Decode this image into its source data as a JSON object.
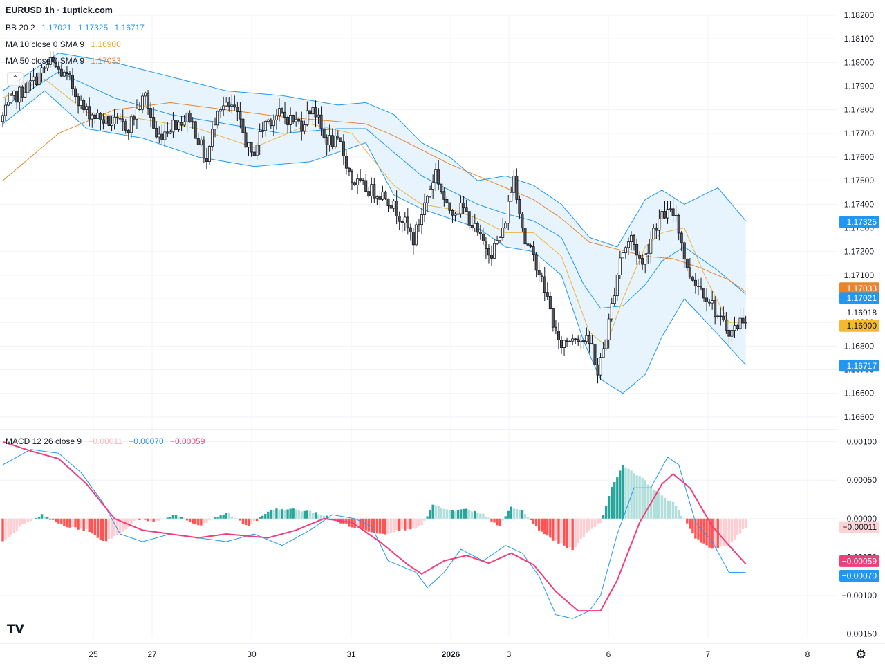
{
  "header": {
    "title": "EURUSD 1h · 1uptick.com",
    "bb": {
      "label": "BB 20 2",
      "basis": "1.17021",
      "upper": "1.17325",
      "lower": "1.16717"
    },
    "ma10": {
      "label": "MA 10 close 0 SMA 9",
      "value": "1.16900"
    },
    "ma50": {
      "label": "MA 50 close 0 SMA 9",
      "value": "1.17033"
    },
    "macd": {
      "label": "MACD 12 26 close 9",
      "hist": "−0.00011",
      "macd": "−0.00070",
      "signal": "−0.00059"
    }
  },
  "colors": {
    "up_candle": "#ffffff",
    "down_candle": "#555555",
    "wick": "#131722",
    "bb_line": "#2196f3",
    "bb_fill": "#e3f2fd",
    "ma10": "#f0b33c",
    "ma50": "#e8842c",
    "macd_line": "#2196f3",
    "signal_line": "#f23d7b",
    "hist_pos_strong": "#26a69a",
    "hist_pos_weak": "#b2dfdb",
    "hist_neg_strong": "#ff5252",
    "hist_neg_weak": "#ffcdd2",
    "badge_upper": "#2196f3",
    "badge_basis": "#2196f3",
    "badge_lower": "#2196f3",
    "badge_ma50": "#e8842c",
    "badge_ma10": "#f5b82e",
    "badge_hist": "#fcd4d6",
    "badge_signal": "#f23d7b",
    "badge_macd": "#2196f3"
  },
  "chart_data": [
    {
      "type": "candlestick",
      "symbol": "EURUSD",
      "timeframe": "1h",
      "ylim": [
        1.1645,
        1.182
      ],
      "y_ticks": [
        "1.18200",
        "1.18100",
        "1.18000",
        "1.17900",
        "1.17800",
        "1.17700",
        "1.17600",
        "1.17500",
        "1.17400",
        "1.17300",
        "1.17200",
        "1.17100",
        "1.17000",
        "1.16900",
        "1.16800",
        "1.16700",
        "1.16600",
        "1.16500"
      ],
      "x_ticks": [
        "25",
        "27",
        "30",
        "31",
        "2026",
        "3",
        "6",
        "7",
        "8"
      ],
      "last_price": "1.16918",
      "bb_upper_key": [
        [
          0,
          1.1788
        ],
        [
          20,
          1.1804
        ],
        [
          40,
          1.18
        ],
        [
          60,
          1.1794
        ],
        [
          80,
          1.1788
        ],
        [
          100,
          1.1786
        ],
        [
          120,
          1.1782
        ],
        [
          130,
          1.1783
        ],
        [
          140,
          1.1778
        ],
        [
          150,
          1.1766
        ],
        [
          160,
          1.176
        ],
        [
          170,
          1.175
        ],
        [
          180,
          1.1752
        ],
        [
          190,
          1.1748
        ],
        [
          200,
          1.174
        ],
        [
          210,
          1.1726
        ],
        [
          220,
          1.1722
        ],
        [
          230,
          1.1742
        ],
        [
          236,
          1.1746
        ],
        [
          244,
          1.174
        ],
        [
          256,
          1.1747
        ],
        [
          266,
          1.1733
        ]
      ],
      "bb_lower_key": [
        [
          0,
          1.1774
        ],
        [
          15,
          1.1788
        ],
        [
          30,
          1.1772
        ],
        [
          50,
          1.1768
        ],
        [
          70,
          1.176
        ],
        [
          90,
          1.1756
        ],
        [
          110,
          1.1758
        ],
        [
          130,
          1.1766
        ],
        [
          140,
          1.1744
        ],
        [
          150,
          1.1738
        ],
        [
          160,
          1.1734
        ],
        [
          170,
          1.173
        ],
        [
          180,
          1.1722
        ],
        [
          190,
          1.172
        ],
        [
          200,
          1.171
        ],
        [
          208,
          1.1682
        ],
        [
          214,
          1.1666
        ],
        [
          222,
          1.166
        ],
        [
          230,
          1.1668
        ],
        [
          236,
          1.1684
        ],
        [
          244,
          1.17
        ],
        [
          256,
          1.1685
        ],
        [
          266,
          1.1672
        ]
      ],
      "bb_basis_key": [
        [
          0,
          1.1781
        ],
        [
          20,
          1.1796
        ],
        [
          40,
          1.1785
        ],
        [
          60,
          1.1778
        ],
        [
          80,
          1.1774
        ],
        [
          100,
          1.177
        ],
        [
          120,
          1.1772
        ],
        [
          130,
          1.1772
        ],
        [
          140,
          1.1762
        ],
        [
          150,
          1.1752
        ],
        [
          160,
          1.1746
        ],
        [
          170,
          1.174
        ],
        [
          180,
          1.1736
        ],
        [
          190,
          1.1733
        ],
        [
          200,
          1.1726
        ],
        [
          208,
          1.1706
        ],
        [
          214,
          1.1696
        ],
        [
          222,
          1.1697
        ],
        [
          230,
          1.1706
        ],
        [
          236,
          1.1716
        ],
        [
          244,
          1.1722
        ],
        [
          256,
          1.1712
        ],
        [
          266,
          1.1702
        ]
      ],
      "ma10_key": [
        [
          0,
          1.1785
        ],
        [
          15,
          1.1793
        ],
        [
          30,
          1.1779
        ],
        [
          50,
          1.1776
        ],
        [
          70,
          1.1772
        ],
        [
          90,
          1.1764
        ],
        [
          110,
          1.1774
        ],
        [
          125,
          1.177
        ],
        [
          140,
          1.1748
        ],
        [
          150,
          1.174
        ],
        [
          160,
          1.1738
        ],
        [
          170,
          1.1734
        ],
        [
          180,
          1.1728
        ],
        [
          190,
          1.1728
        ],
        [
          200,
          1.1718
        ],
        [
          210,
          1.1686
        ],
        [
          216,
          1.168
        ],
        [
          222,
          1.17
        ],
        [
          230,
          1.1722
        ],
        [
          236,
          1.1728
        ],
        [
          244,
          1.173
        ],
        [
          252,
          1.1708
        ],
        [
          260,
          1.169
        ],
        [
          266,
          1.169
        ]
      ],
      "ma50_key": [
        [
          0,
          1.175
        ],
        [
          20,
          1.177
        ],
        [
          40,
          1.178
        ],
        [
          60,
          1.1783
        ],
        [
          80,
          1.178
        ],
        [
          100,
          1.1777
        ],
        [
          120,
          1.1775
        ],
        [
          130,
          1.1774
        ],
        [
          140,
          1.1769
        ],
        [
          150,
          1.1763
        ],
        [
          160,
          1.1757
        ],
        [
          170,
          1.1752
        ],
        [
          180,
          1.1747
        ],
        [
          190,
          1.1742
        ],
        [
          200,
          1.1734
        ],
        [
          210,
          1.1724
        ],
        [
          220,
          1.1721
        ],
        [
          230,
          1.1718
        ],
        [
          240,
          1.1717
        ],
        [
          250,
          1.1713
        ],
        [
          260,
          1.1708
        ],
        [
          266,
          1.1703
        ]
      ],
      "price_path_key": [
        [
          0,
          1.1775
        ],
        [
          5,
          1.1785
        ],
        [
          12,
          1.1792
        ],
        [
          18,
          1.18
        ],
        [
          25,
          1.1792
        ],
        [
          30,
          1.178
        ],
        [
          38,
          1.1775
        ],
        [
          46,
          1.1773
        ],
        [
          52,
          1.1786
        ],
        [
          56,
          1.1768
        ],
        [
          62,
          1.1774
        ],
        [
          68,
          1.1777
        ],
        [
          74,
          1.1758
        ],
        [
          78,
          1.1782
        ],
        [
          84,
          1.178
        ],
        [
          90,
          1.176
        ],
        [
          95,
          1.1775
        ],
        [
          100,
          1.1778
        ],
        [
          108,
          1.1774
        ],
        [
          112,
          1.1782
        ],
        [
          116,
          1.1768
        ],
        [
          122,
          1.1765
        ],
        [
          126,
          1.175
        ],
        [
          132,
          1.1746
        ],
        [
          138,
          1.1744
        ],
        [
          144,
          1.1734
        ],
        [
          148,
          1.1725
        ],
        [
          152,
          1.174
        ],
        [
          156,
          1.1754
        ],
        [
          160,
          1.1738
        ],
        [
          166,
          1.1738
        ],
        [
          172,
          1.1725
        ],
        [
          176,
          1.172
        ],
        [
          180,
          1.1728
        ],
        [
          184,
          1.1752
        ],
        [
          188,
          1.1724
        ],
        [
          192,
          1.1715
        ],
        [
          196,
          1.17
        ],
        [
          200,
          1.168
        ],
        [
          206,
          1.1685
        ],
        [
          212,
          1.168
        ],
        [
          214,
          1.1668
        ],
        [
          218,
          1.169
        ],
        [
          222,
          1.1718
        ],
        [
          226,
          1.1726
        ],
        [
          230,
          1.1714
        ],
        [
          234,
          1.173
        ],
        [
          238,
          1.1736
        ],
        [
          242,
          1.1736
        ],
        [
          246,
          1.1712
        ],
        [
          250,
          1.1706
        ],
        [
          254,
          1.17
        ],
        [
          258,
          1.169
        ],
        [
          262,
          1.1686
        ],
        [
          266,
          1.1692
        ]
      ],
      "current_values": {
        "bb_upper": 1.17325,
        "bb_basis": 1.17021,
        "bb_lower": 1.16717,
        "ma10": 1.169,
        "ma50": 1.17033
      }
    },
    {
      "type": "macd",
      "ylim": [
        -0.00155,
        0.00115
      ],
      "y_ticks": [
        "0.00100",
        "0.00050",
        "0.00000",
        "−0.00050",
        "−0.00100",
        "−0.00150"
      ],
      "macd_key": [
        [
          0,
          0.0007
        ],
        [
          10,
          0.0009
        ],
        [
          20,
          0.00085
        ],
        [
          28,
          0.0006
        ],
        [
          36,
          0.0002
        ],
        [
          42,
          -0.0002
        ],
        [
          50,
          -0.0003
        ],
        [
          60,
          -0.0002
        ],
        [
          70,
          -0.00025
        ],
        [
          80,
          -0.0003
        ],
        [
          90,
          -0.0002
        ],
        [
          100,
          -0.00035
        ],
        [
          110,
          -0.00015
        ],
        [
          118,
          5e-05
        ],
        [
          126,
          0.0
        ],
        [
          132,
          -0.0001
        ],
        [
          138,
          -0.00055
        ],
        [
          148,
          -0.0007
        ],
        [
          152,
          -0.0009
        ],
        [
          158,
          -0.0007
        ],
        [
          164,
          -0.0004
        ],
        [
          172,
          -0.00055
        ],
        [
          180,
          -0.00035
        ],
        [
          186,
          -0.00045
        ],
        [
          192,
          -0.00075
        ],
        [
          198,
          -0.00125
        ],
        [
          204,
          -0.0013
        ],
        [
          210,
          -0.0012
        ],
        [
          214,
          -0.001
        ],
        [
          220,
          -0.0002
        ],
        [
          226,
          0.0004
        ],
        [
          232,
          0.0004
        ],
        [
          238,
          0.0008
        ],
        [
          242,
          0.0007
        ],
        [
          248,
          -5e-05
        ],
        [
          254,
          -0.0003
        ],
        [
          260,
          -0.0007
        ],
        [
          266,
          -0.0007
        ]
      ],
      "signal_key": [
        [
          0,
          0.001
        ],
        [
          10,
          0.00088
        ],
        [
          20,
          0.00078
        ],
        [
          30,
          0.00045
        ],
        [
          40,
          0.0
        ],
        [
          50,
          -0.00015
        ],
        [
          60,
          -0.0002
        ],
        [
          70,
          -0.00025
        ],
        [
          80,
          -0.0002
        ],
        [
          95,
          -0.00025
        ],
        [
          105,
          -0.00015
        ],
        [
          115,
          0.0
        ],
        [
          125,
          -5e-05
        ],
        [
          135,
          -0.0003
        ],
        [
          145,
          -0.0006
        ],
        [
          150,
          -0.00072
        ],
        [
          158,
          -0.00055
        ],
        [
          166,
          -0.00048
        ],
        [
          174,
          -0.00058
        ],
        [
          182,
          -0.00045
        ],
        [
          190,
          -0.0006
        ],
        [
          198,
          -0.00095
        ],
        [
          206,
          -0.0012
        ],
        [
          214,
          -0.0012
        ],
        [
          220,
          -0.0008
        ],
        [
          228,
          -5e-05
        ],
        [
          236,
          0.00045
        ],
        [
          240,
          0.00058
        ],
        [
          246,
          0.0004
        ],
        [
          254,
          -0.0001
        ],
        [
          260,
          -0.00035
        ],
        [
          266,
          -0.00059
        ]
      ],
      "hist_key": [
        [
          0,
          -0.0003
        ],
        [
          8,
          -5e-05
        ],
        [
          14,
          5e-05
        ],
        [
          22,
          -0.0001
        ],
        [
          30,
          -0.00015
        ],
        [
          36,
          -0.0003
        ],
        [
          42,
          -0.0002
        ],
        [
          48,
          0.0
        ],
        [
          54,
          -5e-05
        ],
        [
          62,
          5e-05
        ],
        [
          70,
          -0.0001
        ],
        [
          80,
          8e-05
        ],
        [
          88,
          -0.0001
        ],
        [
          96,
          0.00012
        ],
        [
          104,
          0.00012
        ],
        [
          112,
          8e-05
        ],
        [
          118,
          0.0
        ],
        [
          124,
          -0.0001
        ],
        [
          130,
          -0.00015
        ],
        [
          136,
          -0.0002
        ],
        [
          142,
          -0.00015
        ],
        [
          150,
          -0.0001
        ],
        [
          154,
          0.00018
        ],
        [
          160,
          0.0001
        ],
        [
          166,
          0.00012
        ],
        [
          172,
          5e-05
        ],
        [
          178,
          -0.0001
        ],
        [
          182,
          0.00015
        ],
        [
          186,
          0.0001
        ],
        [
          192,
          -0.00015
        ],
        [
          198,
          -0.0003
        ],
        [
          204,
          -0.0004
        ],
        [
          210,
          -0.00015
        ],
        [
          214,
          -5e-05
        ],
        [
          218,
          0.0004
        ],
        [
          222,
          0.0007
        ],
        [
          228,
          0.00055
        ],
        [
          236,
          0.0003
        ],
        [
          240,
          0.0002
        ],
        [
          244,
          0.0
        ],
        [
          248,
          -0.00025
        ],
        [
          254,
          -0.0004
        ],
        [
          260,
          -0.00035
        ],
        [
          266,
          -0.00011
        ]
      ],
      "current_values": {
        "hist": -0.00011,
        "macd": -0.0007,
        "signal": -0.00059
      }
    }
  ]
}
